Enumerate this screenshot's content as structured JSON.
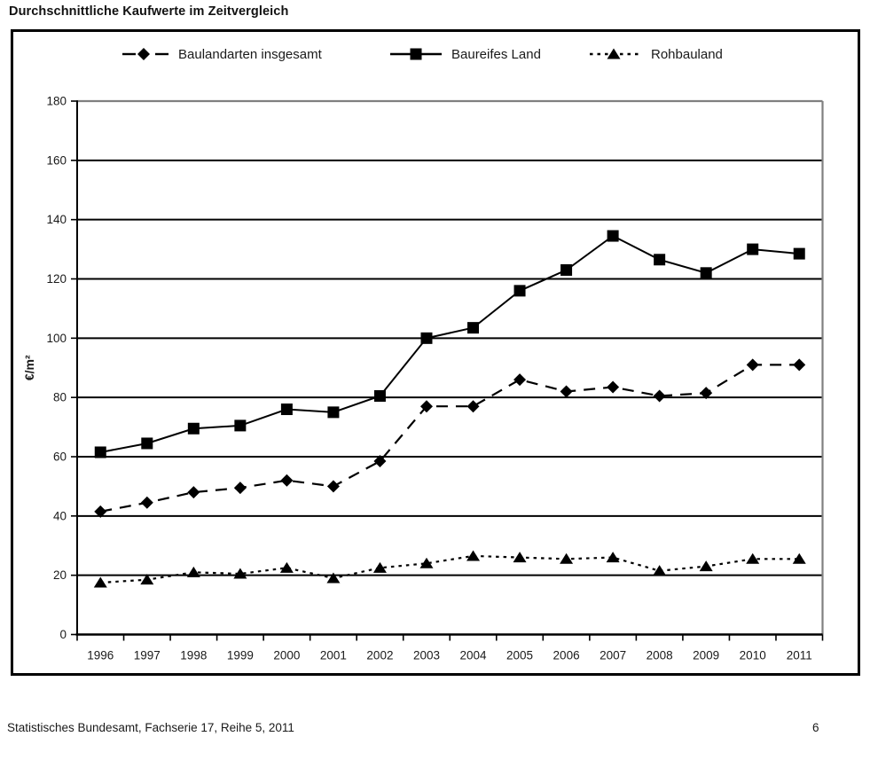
{
  "page": {
    "title": "Durchschnittliche Kaufwerte im Zeitvergleich",
    "footer": "Statistisches Bundesamt, Fachserie 17, Reihe 5, 2011",
    "page_number": "6"
  },
  "chart_data": {
    "type": "line",
    "title": "Durchschnittliche Kaufwerte im Zeitvergleich",
    "xlabel": "",
    "ylabel": "€/m²",
    "ylim": [
      0,
      180
    ],
    "ytick_step": 20,
    "grid": true,
    "legend_position": "top-inside",
    "categories": [
      "1996",
      "1997",
      "1998",
      "1999",
      "2000",
      "2001",
      "2002",
      "2003",
      "2004",
      "2005",
      "2006",
      "2007",
      "2008",
      "2009",
      "2010",
      "2011"
    ],
    "series": [
      {
        "name": "Baulandarten insgesamt",
        "marker": "diamond",
        "line": "dashed",
        "values": [
          41.5,
          44.5,
          48,
          49.5,
          52,
          50,
          58.5,
          77,
          77,
          86,
          82,
          83.5,
          80.5,
          81.5,
          91,
          91
        ]
      },
      {
        "name": "Baureifes Land",
        "marker": "square",
        "line": "solid",
        "values": [
          61.5,
          64.5,
          69.5,
          70.5,
          76,
          75,
          80.5,
          100,
          103.5,
          116,
          123,
          134.5,
          126.5,
          122,
          130,
          128.5
        ]
      },
      {
        "name": "Rohbauland",
        "marker": "triangle",
        "line": "dotted",
        "values": [
          17.5,
          18.5,
          21,
          20.5,
          22.5,
          19,
          22.5,
          24,
          26.5,
          26,
          25.5,
          26,
          21.5,
          23,
          25.5,
          25.5
        ]
      }
    ],
    "colors": {
      "series": "#000000",
      "grid": "#000000",
      "plot_frame": "#808080",
      "text": "#1a1a1a"
    }
  }
}
